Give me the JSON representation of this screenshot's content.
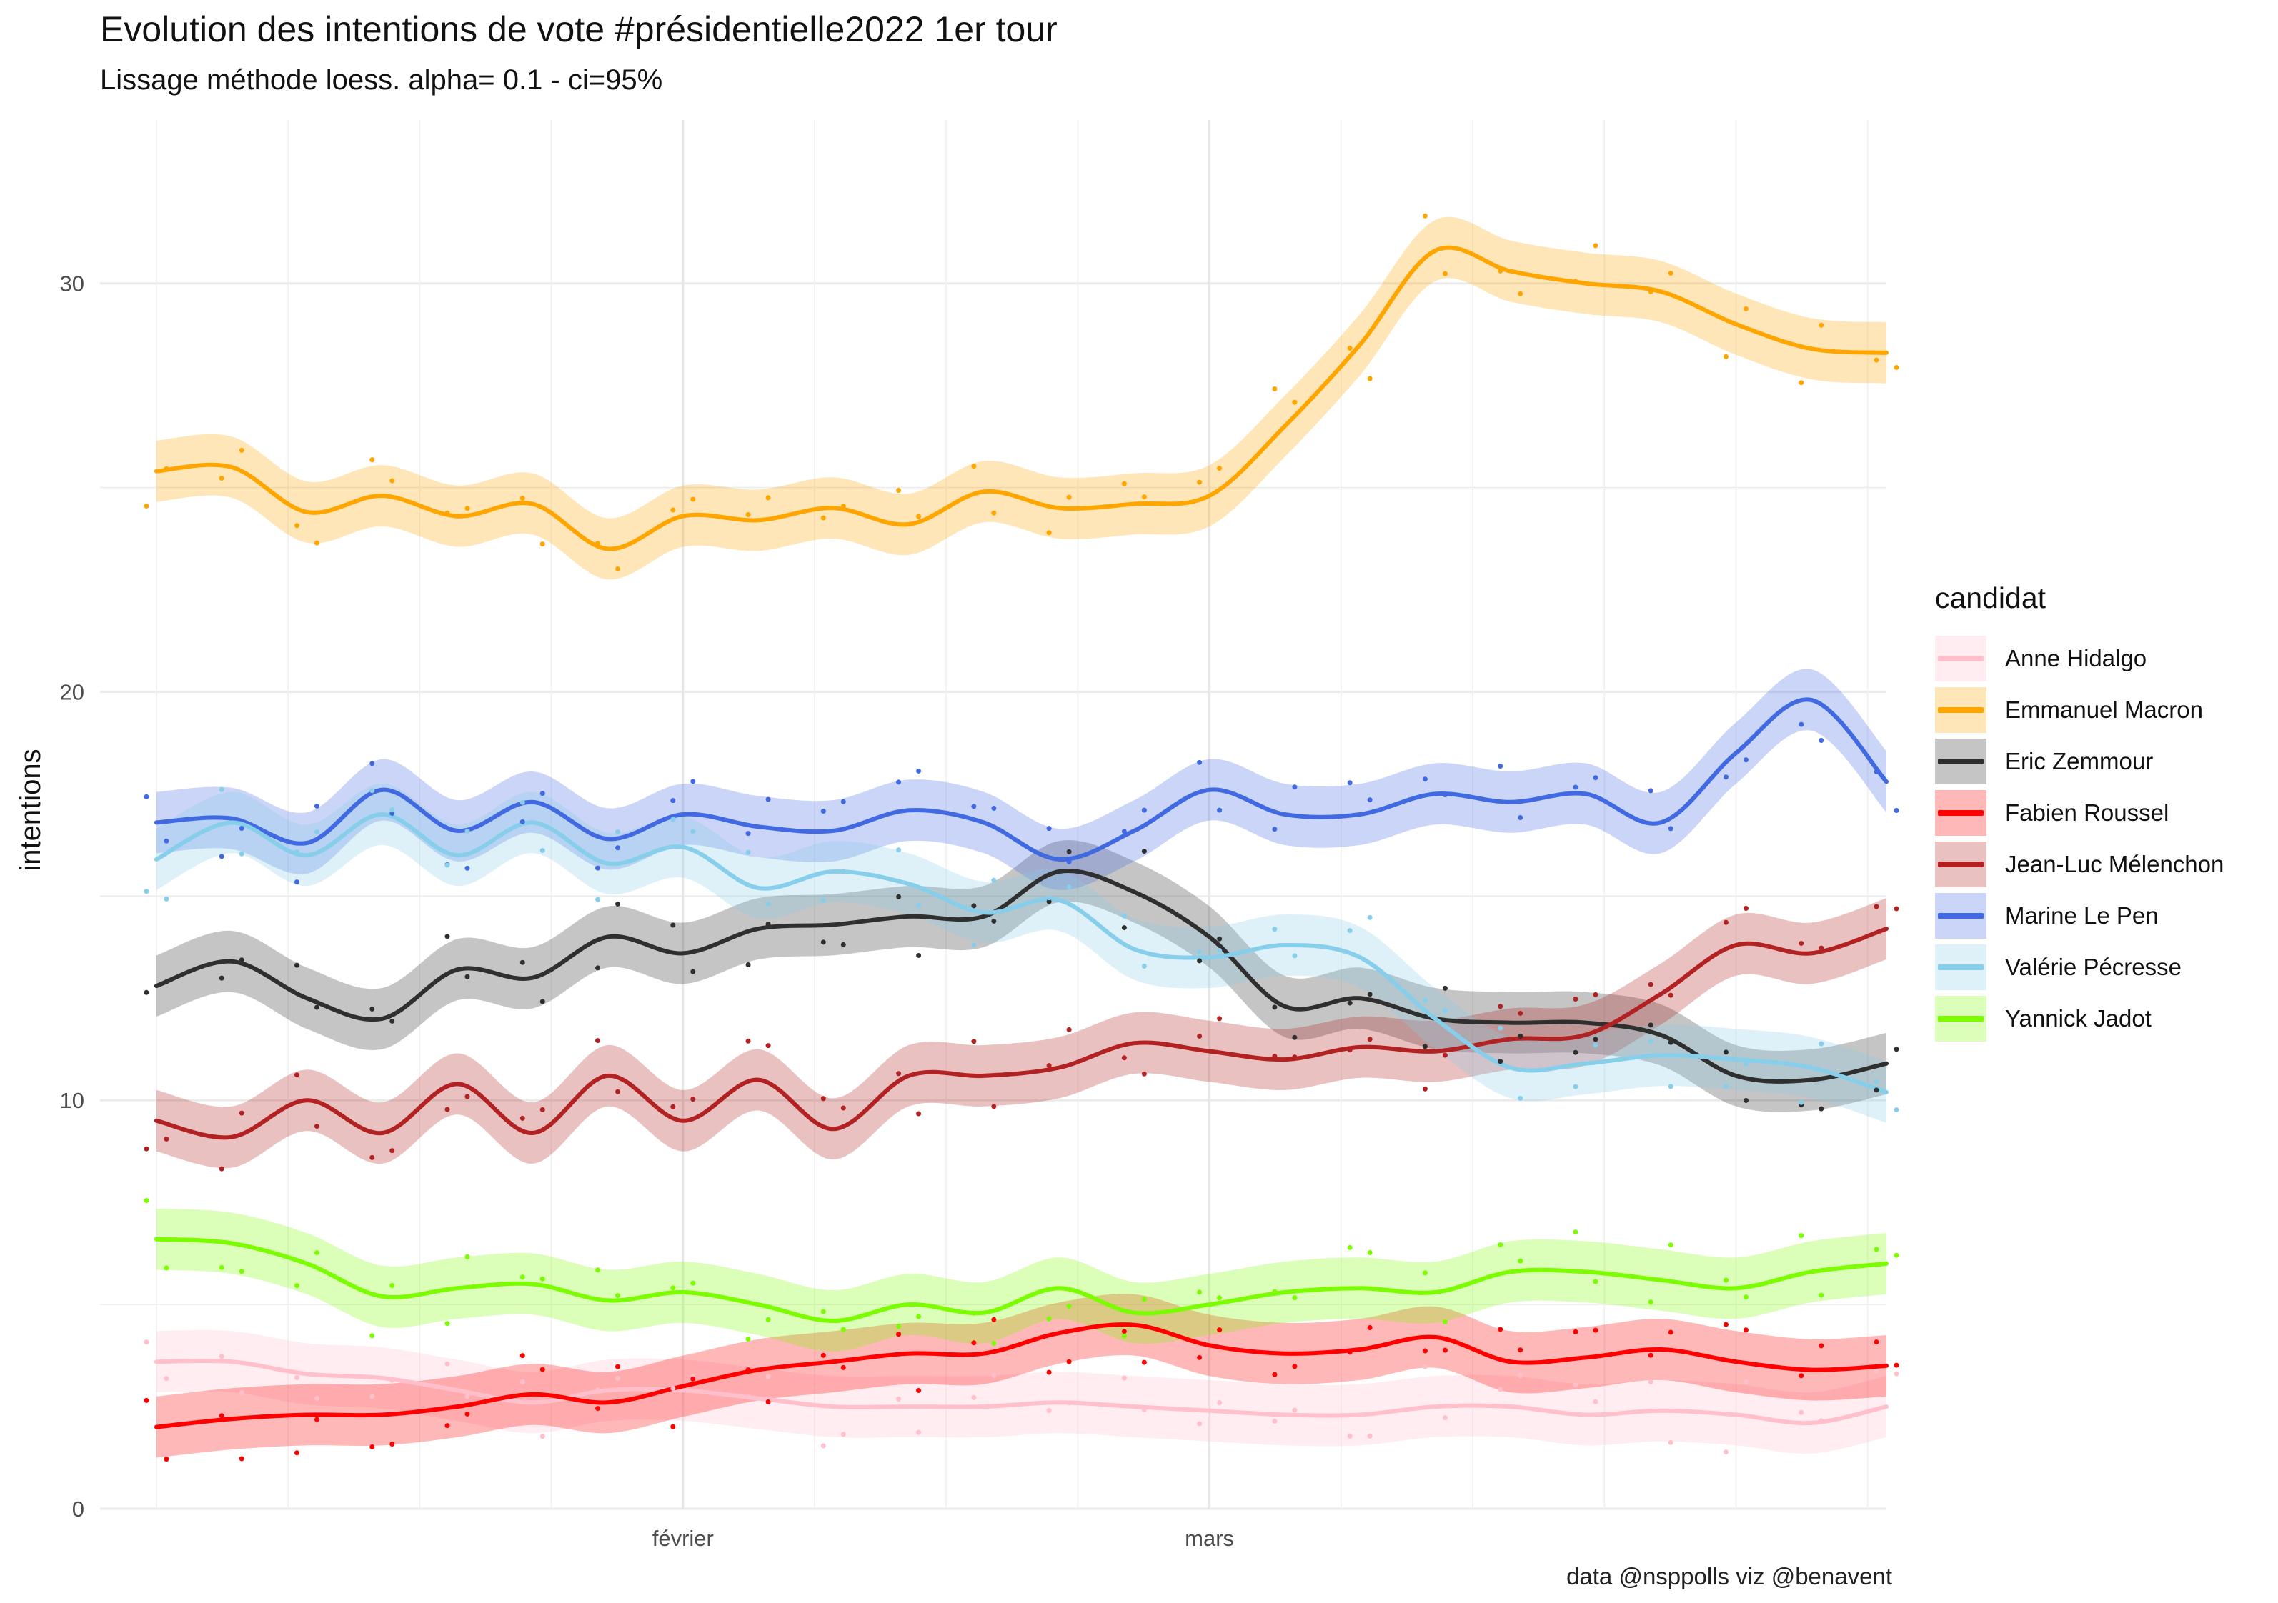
{
  "chart_data": {
    "type": "line",
    "title": "Evolution des intentions de vote #présidentielle2022 1er tour",
    "subtitle": "Lissage méthode loess. alpha= 0.1  - ci=95%",
    "caption": "data @nsppolls viz @benavent",
    "ylabel": "intentions",
    "xlabel": "",
    "ylim": [
      0,
      34
    ],
    "xlim": [
      "2022-01-01",
      "2022-04-06"
    ],
    "y_ticks": [
      0,
      10,
      20,
      30
    ],
    "x_ticks": [
      {
        "date": "2022-02-01",
        "label": "février"
      },
      {
        "date": "2022-03-01",
        "label": "mars"
      }
    ],
    "legend_title": "candidat",
    "legend_position": "right",
    "grid": true,
    "x": [
      "2022-01-04",
      "2022-01-08",
      "2022-01-12",
      "2022-01-16",
      "2022-01-20",
      "2022-01-24",
      "2022-01-28",
      "2022-02-01",
      "2022-02-05",
      "2022-02-09",
      "2022-02-13",
      "2022-02-17",
      "2022-02-21",
      "2022-02-25",
      "2022-03-01",
      "2022-03-05",
      "2022-03-09",
      "2022-03-13",
      "2022-03-17",
      "2022-03-21",
      "2022-03-25",
      "2022-03-29",
      "2022-04-02",
      "2022-04-06"
    ],
    "series": [
      {
        "name": "Anne Hidalgo",
        "color": "#ffc0cb",
        "values": [
          3.6,
          3.6,
          3.3,
          3.2,
          2.9,
          2.6,
          2.9,
          2.9,
          2.7,
          2.5,
          2.5,
          2.5,
          2.6,
          2.5,
          2.4,
          2.3,
          2.3,
          2.5,
          2.5,
          2.3,
          2.4,
          2.3,
          2.1,
          2.5
        ]
      },
      {
        "name": "Emmanuel Macron",
        "color": "#ffa500",
        "values": [
          25.4,
          25.5,
          24.4,
          24.8,
          24.3,
          24.6,
          23.5,
          24.3,
          24.2,
          24.5,
          24.1,
          24.9,
          24.5,
          24.6,
          24.8,
          26.5,
          28.5,
          30.8,
          30.3,
          30.0,
          29.8,
          29.0,
          28.4,
          28.3
        ]
      },
      {
        "name": "Eric Zemmour",
        "color": "#2f2f2f",
        "values": [
          12.8,
          13.4,
          12.5,
          12.0,
          13.2,
          13.0,
          14.0,
          13.6,
          14.2,
          14.3,
          14.5,
          14.5,
          15.6,
          15.1,
          14.0,
          12.3,
          12.5,
          12.0,
          11.9,
          11.9,
          11.6,
          10.6,
          10.5,
          10.9
        ]
      },
      {
        "name": "Fabien Roussel",
        "color": "#ff0000",
        "values": [
          2.0,
          2.2,
          2.3,
          2.3,
          2.5,
          2.8,
          2.6,
          3.0,
          3.4,
          3.6,
          3.8,
          3.8,
          4.3,
          4.5,
          4.0,
          3.8,
          3.9,
          4.2,
          3.6,
          3.7,
          3.9,
          3.6,
          3.4,
          3.5
        ]
      },
      {
        "name": "Jean-Luc Mélenchon",
        "color": "#b22222",
        "values": [
          9.5,
          9.1,
          10.0,
          9.2,
          10.4,
          9.2,
          10.6,
          9.5,
          10.5,
          9.3,
          10.6,
          10.6,
          10.8,
          11.4,
          11.2,
          11.0,
          11.3,
          11.2,
          11.5,
          11.6,
          12.6,
          13.8,
          13.6,
          14.2
        ]
      },
      {
        "name": "Marine Le Pen",
        "color": "#4169e1",
        "values": [
          16.8,
          16.9,
          16.3,
          17.6,
          16.6,
          17.3,
          16.4,
          17.0,
          16.7,
          16.6,
          17.1,
          16.8,
          15.9,
          16.6,
          17.6,
          17.0,
          17.0,
          17.5,
          17.3,
          17.5,
          16.8,
          18.5,
          19.8,
          17.8
        ]
      },
      {
        "name": "Valérie Pécresse",
        "color": "#87ceeb",
        "values": [
          15.9,
          16.8,
          16.0,
          17.0,
          16.0,
          16.8,
          15.8,
          16.2,
          15.2,
          15.6,
          15.3,
          14.6,
          14.9,
          13.7,
          13.5,
          13.8,
          13.5,
          12.0,
          10.8,
          10.9,
          11.1,
          11.0,
          10.8,
          10.2
        ]
      },
      {
        "name": "Yannick Jadot",
        "color": "#7cfc00",
        "values": [
          6.6,
          6.5,
          6.0,
          5.2,
          5.4,
          5.5,
          5.1,
          5.3,
          5.0,
          4.6,
          5.0,
          4.8,
          5.4,
          4.8,
          5.0,
          5.3,
          5.4,
          5.3,
          5.8,
          5.8,
          5.6,
          5.4,
          5.8,
          6.0
        ]
      }
    ]
  }
}
